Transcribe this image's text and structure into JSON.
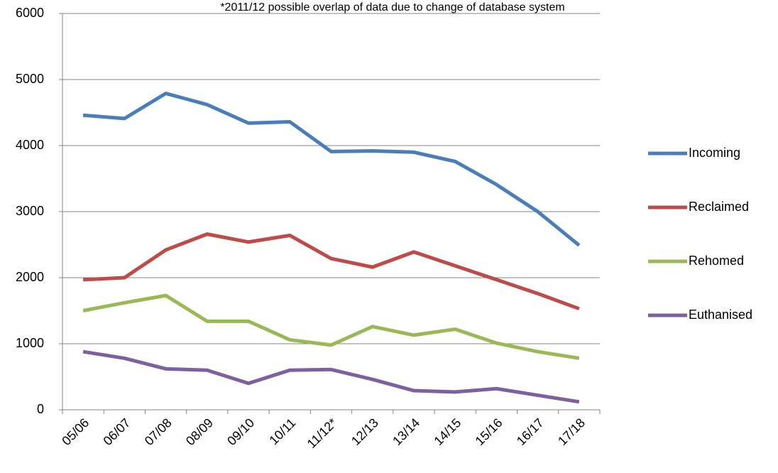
{
  "chart_data": {
    "type": "line",
    "annotation": "*2011/12  possible overlap of data due to change of database system",
    "categories": [
      "05/06",
      "06/07",
      "07/08",
      "08/09",
      "09/10",
      "10/11",
      "11/12*",
      "12/13",
      "13/14",
      "14/15",
      "15/16",
      "16/17",
      "17/18"
    ],
    "series": [
      {
        "name": "Incoming",
        "color": "#4a7ebb",
        "values": [
          4460,
          4410,
          4790,
          4620,
          4340,
          4360,
          3910,
          3920,
          3900,
          3760,
          3410,
          3000,
          2490
        ]
      },
      {
        "name": "Reclaimed",
        "color": "#be4b48",
        "values": [
          1970,
          2000,
          2420,
          2660,
          2540,
          2640,
          2290,
          2160,
          2390,
          2180,
          1970,
          1760,
          1530
        ]
      },
      {
        "name": "Rehomed",
        "color": "#98b954",
        "values": [
          1500,
          1620,
          1730,
          1340,
          1340,
          1060,
          980,
          1260,
          1130,
          1220,
          1010,
          880,
          780
        ]
      },
      {
        "name": "Euthanised",
        "color": "#7d60a0",
        "values": [
          880,
          780,
          620,
          600,
          400,
          600,
          610,
          460,
          290,
          270,
          320,
          220,
          120
        ]
      }
    ],
    "ylim": [
      0,
      6000
    ],
    "yticks": [
      0,
      1000,
      2000,
      3000,
      4000,
      5000,
      6000
    ],
    "grid": true,
    "legend": "right"
  }
}
